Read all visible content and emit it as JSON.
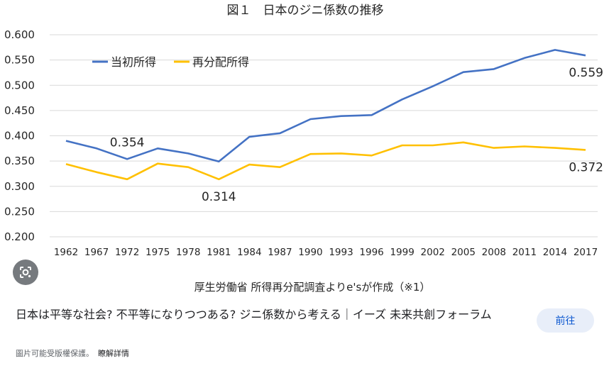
{
  "chart_data": {
    "type": "line",
    "title": "図１　日本のジニ係数の推移",
    "source_note": "厚生労働省 所得再分配調査よりe'sが作成（※1）",
    "categories": [
      "1962",
      "1967",
      "1972",
      "1975",
      "1978",
      "1981",
      "1984",
      "1987",
      "1990",
      "1993",
      "1996",
      "1999",
      "2002",
      "2005",
      "2008",
      "2011",
      "2014",
      "2017"
    ],
    "y_ticks": [
      "0.600",
      "0.550",
      "0.500",
      "0.450",
      "0.400",
      "0.350",
      "0.300",
      "0.250",
      "0.200"
    ],
    "ylim": [
      0.2,
      0.6
    ],
    "grid": true,
    "legend_position": "top-left",
    "series": [
      {
        "name": "当初所得",
        "color": "#4472c4",
        "values": [
          0.39,
          0.375,
          0.354,
          0.375,
          0.365,
          0.349,
          0.398,
          0.405,
          0.433,
          0.439,
          0.441,
          0.472,
          0.498,
          0.526,
          0.532,
          0.554,
          0.57,
          0.559
        ]
      },
      {
        "name": "再分配所得",
        "color": "#ffc000",
        "values": [
          0.344,
          0.328,
          0.314,
          0.345,
          0.338,
          0.314,
          0.343,
          0.338,
          0.364,
          0.365,
          0.361,
          0.381,
          0.381,
          0.387,
          0.376,
          0.379,
          0.376,
          0.372
        ]
      }
    ],
    "annotations": [
      {
        "text": "0.354",
        "series": 0,
        "index": 2,
        "anchor": "above"
      },
      {
        "text": "0.314",
        "series": 1,
        "index": 5,
        "anchor": "below"
      },
      {
        "text": "0.559",
        "series": 0,
        "index": 17,
        "anchor": "below"
      },
      {
        "text": "0.372",
        "series": 1,
        "index": 17,
        "anchor": "below"
      }
    ]
  },
  "result": {
    "page_title": "日本は平等な社会? 不平等になりつつある? ジニ係数から考える｜イーズ 未来共創フォーラム",
    "visit_label": "前往",
    "copyright_text": "圖片可能受版權保護。",
    "learn_more_label": "瞭解詳情"
  }
}
